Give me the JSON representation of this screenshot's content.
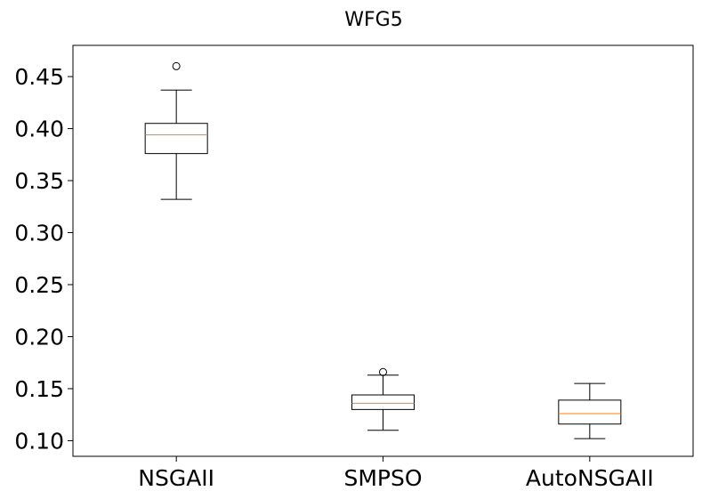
{
  "chart_data": {
    "type": "box",
    "title": "WFG5",
    "xlabel": "",
    "ylabel": "",
    "categories": [
      "NSGAII",
      "SMPSO",
      "AutoNSGAII"
    ],
    "ylim": [
      0.085,
      0.48
    ],
    "yticks": [
      0.1,
      0.15,
      0.2,
      0.25,
      0.3,
      0.35,
      0.4,
      0.45
    ],
    "ytick_labels": [
      "0.10",
      "0.15",
      "0.20",
      "0.25",
      "0.30",
      "0.35",
      "0.40",
      "0.45"
    ],
    "grid": false,
    "boxes": [
      {
        "name": "NSGAII",
        "whisker_low": 0.332,
        "q1": 0.376,
        "median": 0.394,
        "q3": 0.405,
        "whisker_high": 0.437,
        "outliers": [
          0.46
        ]
      },
      {
        "name": "SMPSO",
        "whisker_low": 0.11,
        "q1": 0.13,
        "median": 0.136,
        "q3": 0.144,
        "whisker_high": 0.163,
        "outliers": [
          0.166
        ]
      },
      {
        "name": "AutoNSGAII",
        "whisker_low": 0.102,
        "q1": 0.116,
        "median": 0.126,
        "q3": 0.139,
        "whisker_high": 0.155,
        "outliers": []
      }
    ],
    "colors": {
      "box": "#000000",
      "median": "#ff7f0e",
      "outlier": "#000000"
    }
  }
}
